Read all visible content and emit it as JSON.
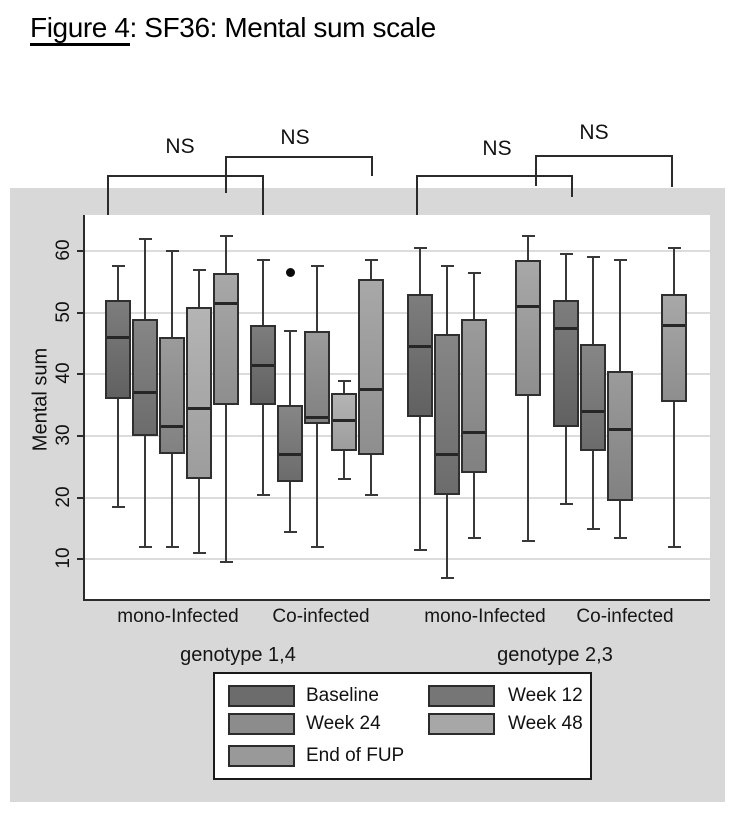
{
  "title": {
    "figure_label": "Figure 4",
    "title_rest": ": SF36: Mental sum scale"
  },
  "chart_data": {
    "type": "boxplot",
    "title": "Figure 4: SF36: Mental sum scale",
    "ylabel": "Mental sum",
    "xlabel": "",
    "yticks": [
      10,
      20,
      30,
      40,
      50,
      60
    ],
    "ylim": [
      4,
      65
    ],
    "grid": "horizontal",
    "series_order": [
      "Baseline",
      "Week 12",
      "Week 24",
      "Week 48",
      "End of FUP"
    ],
    "series_colors": {
      "Baseline": {
        "legend": "#6c6c6c",
        "top": "#7d7d7d",
        "bottom": "#616161"
      },
      "Week 12": {
        "legend": "#767676",
        "top": "#868686",
        "bottom": "#6c6c6c"
      },
      "Week 24": {
        "legend": "#8c8c8c",
        "top": "#9b9b9b",
        "bottom": "#818181"
      },
      "Week 48": {
        "legend": "#a7a7a7",
        "top": "#b4b4b4",
        "bottom": "#9d9d9d"
      },
      "End of FUP": {
        "legend": "#999999",
        "top": "#a8a8a8",
        "bottom": "#8e8e8e"
      }
    },
    "groups": [
      {
        "genotype": "genotype 1,4",
        "category": "mono-Infected",
        "boxes": [
          {
            "series": "Baseline",
            "slot": 0,
            "whisker_low": 18.5,
            "q1": 36,
            "median": 46,
            "q3": 52,
            "whisker_high": 57.5,
            "outliers": []
          },
          {
            "series": "Week 12",
            "slot": 1,
            "whisker_low": 12,
            "q1": 30,
            "median": 37,
            "q3": 49,
            "whisker_high": 62,
            "outliers": []
          },
          {
            "series": "Week 24",
            "slot": 2,
            "whisker_low": 12,
            "q1": 27,
            "median": 31.5,
            "q3": 46,
            "whisker_high": 60,
            "outliers": []
          },
          {
            "series": "Week 48",
            "slot": 3,
            "whisker_low": 11,
            "q1": 23,
            "median": 34.5,
            "q3": 51,
            "whisker_high": 57,
            "outliers": []
          },
          {
            "series": "End of FUP",
            "slot": 4,
            "whisker_low": 9.5,
            "q1": 35,
            "median": 51.5,
            "q3": 56.5,
            "whisker_high": 62.5,
            "outliers": []
          }
        ]
      },
      {
        "genotype": "genotype 1,4",
        "category": "Co-infected",
        "boxes": [
          {
            "series": "Baseline",
            "slot": 0,
            "whisker_low": 20.5,
            "q1": 35,
            "median": 41.5,
            "q3": 48,
            "whisker_high": 58.5,
            "outliers": []
          },
          {
            "series": "Week 12",
            "slot": 1,
            "whisker_low": 14.5,
            "q1": 22.5,
            "median": 27,
            "q3": 35,
            "whisker_high": 47,
            "outliers": [
              56.5
            ]
          },
          {
            "series": "Week 24",
            "slot": 2,
            "whisker_low": 12,
            "q1": 32,
            "median": 33,
            "q3": 47,
            "whisker_high": 57.5,
            "outliers": []
          },
          {
            "series": "Week 48",
            "slot": 3,
            "whisker_low": 23,
            "q1": 27.5,
            "median": 32.5,
            "q3": 37,
            "whisker_high": 39,
            "outliers": []
          },
          {
            "series": "End of FUP",
            "slot": 4,
            "whisker_low": 20.5,
            "q1": 27,
            "median": 37.5,
            "q3": 55.5,
            "whisker_high": 58.5,
            "outliers": []
          }
        ]
      },
      {
        "genotype": "genotype 2,3",
        "category": "mono-Infected",
        "boxes": [
          {
            "series": "Baseline",
            "slot": 0,
            "whisker_low": 11.5,
            "q1": 33,
            "median": 44.5,
            "q3": 53,
            "whisker_high": 60.5,
            "outliers": []
          },
          {
            "series": "Week 12",
            "slot": 1,
            "whisker_low": 7,
            "q1": 20.5,
            "median": 27,
            "q3": 46.5,
            "whisker_high": 57.5,
            "outliers": []
          },
          {
            "series": "Week 24",
            "slot": 2,
            "whisker_low": 13.5,
            "q1": 24,
            "median": 30.5,
            "q3": 49,
            "whisker_high": 56.5,
            "outliers": []
          },
          {
            "series": "End of FUP",
            "slot": 4,
            "whisker_low": 13,
            "q1": 36.5,
            "median": 51,
            "q3": 58.5,
            "whisker_high": 62.5,
            "outliers": []
          }
        ]
      },
      {
        "genotype": "genotype 2,3",
        "category": "Co-infected",
        "boxes": [
          {
            "series": "Baseline",
            "slot": 0,
            "whisker_low": 19,
            "q1": 31.5,
            "median": 47.5,
            "q3": 52,
            "whisker_high": 59.5,
            "outliers": []
          },
          {
            "series": "Week 12",
            "slot": 1,
            "whisker_low": 15,
            "q1": 27.5,
            "median": 34,
            "q3": 45,
            "whisker_high": 59,
            "outliers": []
          },
          {
            "series": "Week 24",
            "slot": 2,
            "whisker_low": 13.5,
            "q1": 19.5,
            "median": 31,
            "q3": 40.5,
            "whisker_high": 58.5,
            "outliers": []
          },
          {
            "series": "End of FUP",
            "slot": 4,
            "whisker_low": 12,
            "q1": 35.5,
            "median": 48,
            "q3": 53,
            "whisker_high": 60.5,
            "outliers": []
          }
        ]
      }
    ],
    "category_labels": [
      "mono-Infected",
      "Co-infected",
      "mono-Infected",
      "Co-infected"
    ],
    "genotype_labels": [
      "genotype 1,4",
      "genotype 2,3"
    ],
    "annotations": [
      {
        "label": "NS"
      },
      {
        "label": "NS"
      },
      {
        "label": "NS"
      },
      {
        "label": "NS"
      }
    ]
  },
  "legend": {
    "columns": [
      [
        "Baseline",
        "Week 24",
        "End of FUP"
      ],
      [
        "Week 12",
        "Week 48"
      ]
    ]
  },
  "colors": {
    "panel_bg": "#d8d8d8",
    "plot_bg": "#ffffff",
    "gridline": "#dcdcdc",
    "axis": "#2b2b2b",
    "box_border": "#2f2f2f",
    "bracket": "#2b2b2b",
    "text": "#111111"
  }
}
